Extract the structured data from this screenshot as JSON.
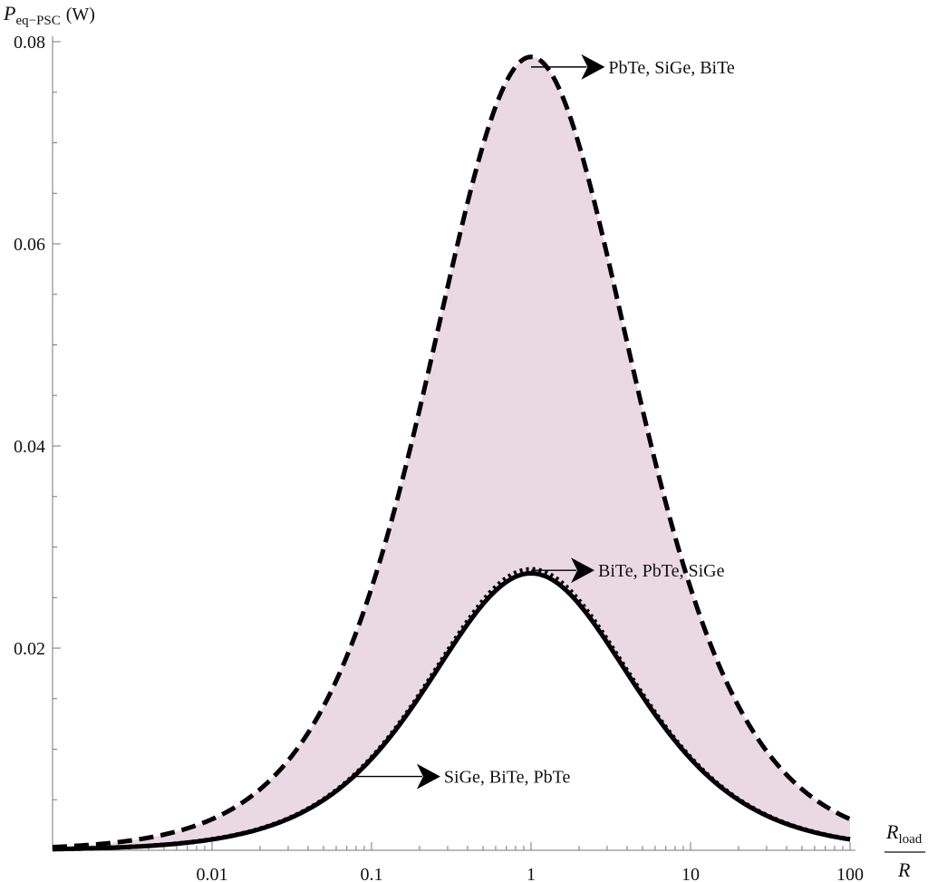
{
  "chart_data": {
    "type": "line",
    "xscale": "log",
    "xlim": [
      0.001,
      100
    ],
    "ylim": [
      0,
      0.08
    ],
    "grid": false,
    "legend": "none",
    "ylabel": {
      "main": "P",
      "sub": "eq−PSC",
      "unit": "(W)"
    },
    "xlabel": {
      "numerator": "R",
      "numerator_sub": "load",
      "denominator": "R"
    },
    "xticks": [
      {
        "value": 0.01,
        "label": "0.01"
      },
      {
        "value": 0.1,
        "label": "0.1"
      },
      {
        "value": 1,
        "label": "1"
      },
      {
        "value": 10,
        "label": "10"
      },
      {
        "value": 100,
        "label": "100"
      }
    ],
    "yticks": [
      {
        "value": 0.02,
        "label": "0.02"
      },
      {
        "value": 0.04,
        "label": "0.04"
      },
      {
        "value": 0.06,
        "label": "0.06"
      },
      {
        "value": 0.08,
        "label": "0.08"
      }
    ],
    "shaded_band": {
      "between": [
        "upper",
        "lower"
      ],
      "color": "#ead8e2"
    },
    "series": [
      {
        "key": "upper",
        "peak_x": 1,
        "peak_y": 0.0785,
        "style": "dashed",
        "color": "#000000"
      },
      {
        "key": "middle",
        "peak_x": 1,
        "peak_y": 0.0278,
        "style": "dotted",
        "color": "#000000"
      },
      {
        "key": "lower",
        "peak_x": 1,
        "peak_y": 0.0274,
        "style": "solid",
        "color": "#000000"
      }
    ],
    "annotations": [
      {
        "text": "PbTe, SiGe, BiTe",
        "x_from": 1.0,
        "x_to": 2.9,
        "y": 0.0775
      },
      {
        "text": "BiTe, PbTe, SiGe",
        "x_from": 1.0,
        "x_to": 2.5,
        "y": 0.0277
      },
      {
        "text": "SiGe, BiTe, PbTe",
        "x_from": 0.075,
        "x_to": 0.27,
        "y": 0.0073
      }
    ]
  }
}
